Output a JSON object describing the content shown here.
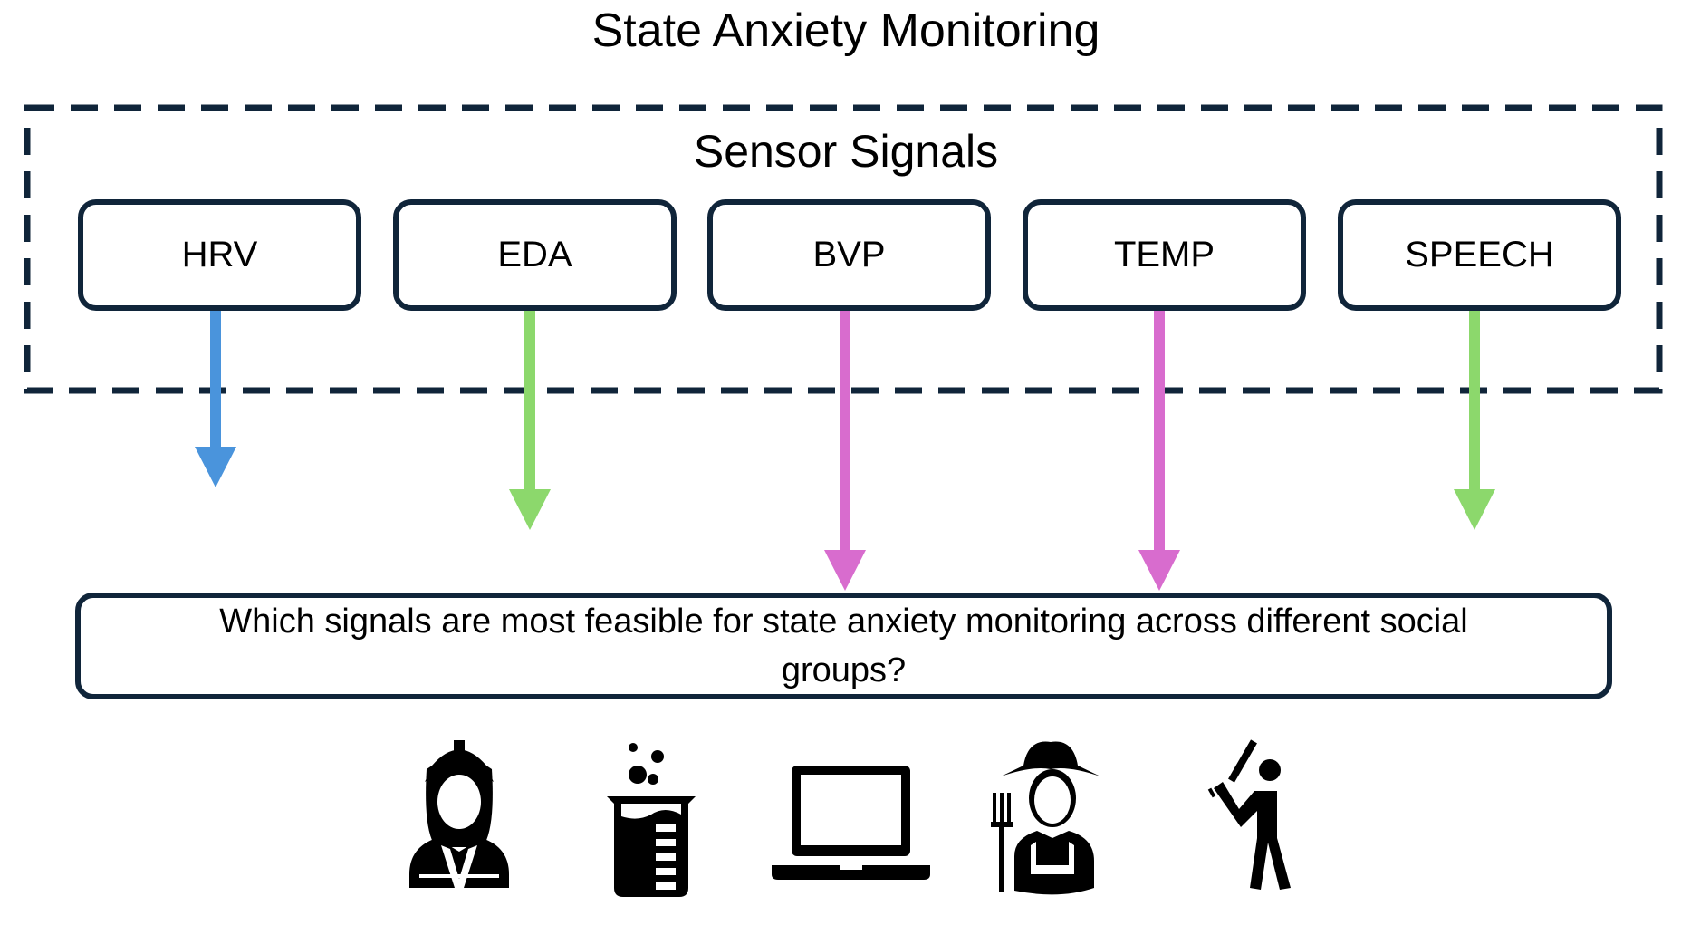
{
  "title": "State Anxiety Monitoring",
  "sensor_group": {
    "title": "Sensor Signals",
    "signals": [
      {
        "label": "HRV",
        "arrow_color": "#4a94dc"
      },
      {
        "label": "EDA",
        "arrow_color": "#8cd86c"
      },
      {
        "label": "BVP",
        "arrow_color": "#d86cce"
      },
      {
        "label": "TEMP",
        "arrow_color": "#d86cce"
      },
      {
        "label": "SPEECH",
        "arrow_color": "#8cd86c"
      }
    ]
  },
  "question": "Which signals are most feasible for state anxiety monitoring across different social groups?",
  "social_groups": [
    {
      "icon": "construction-worker-icon"
    },
    {
      "icon": "lab-beaker-icon"
    },
    {
      "icon": "laptop-icon"
    },
    {
      "icon": "farmer-icon"
    },
    {
      "icon": "baseball-player-icon"
    }
  ],
  "colors": {
    "box_border": "#10253a",
    "dashed_border": "#10253a"
  }
}
